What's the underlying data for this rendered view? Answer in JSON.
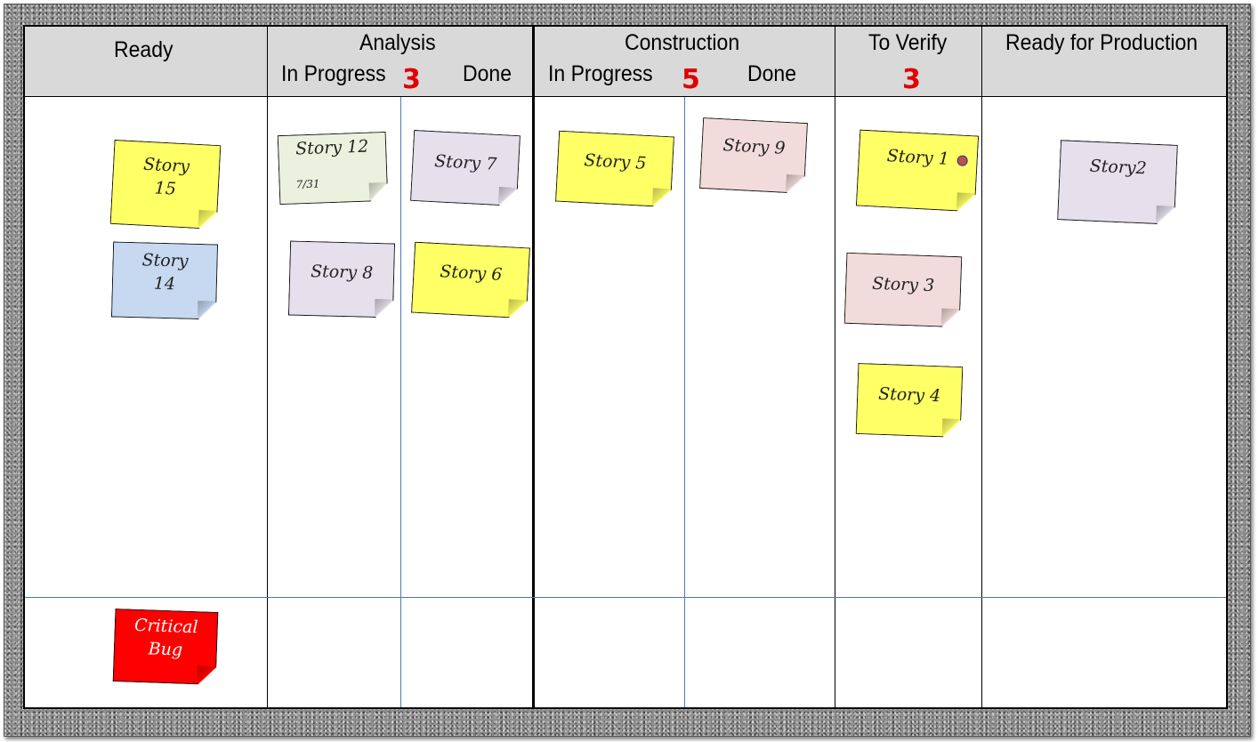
{
  "board": {
    "columns": {
      "ready": {
        "title": "Ready"
      },
      "analysis": {
        "title": "Analysis",
        "sub_in_progress": "In Progress",
        "sub_done": "Done",
        "wip_limit": "3"
      },
      "construction": {
        "title": "Construction",
        "sub_in_progress": "In Progress",
        "sub_done": "Done",
        "wip_limit": "5"
      },
      "to_verify": {
        "title": "To Verify",
        "wip_limit": "3"
      },
      "ready_for_production": {
        "title": "Ready for Production"
      }
    },
    "cards": [
      {
        "label": "Story 15",
        "line1": "Story",
        "line2": "15",
        "column": "Ready",
        "color": "#ffff66"
      },
      {
        "label": "Story 14",
        "line1": "Story",
        "line2": "14",
        "column": "Ready",
        "color": "#c6d9f0"
      },
      {
        "label": "Critical Bug",
        "line1": "Critical",
        "line2": "Bug",
        "column": "Ready (expedite lane)",
        "color": "#ff0000"
      },
      {
        "label": "Story 12",
        "date": "7/31",
        "column": "Analysis - In Progress",
        "color": "#ebf1de"
      },
      {
        "label": "Story 8",
        "column": "Analysis - In Progress",
        "color": "#e5e0ec"
      },
      {
        "label": "Story 7",
        "column": "Analysis - Done",
        "color": "#e5e0ec"
      },
      {
        "label": "Story 6",
        "column": "Analysis - Done",
        "color": "#ffff66"
      },
      {
        "label": "Story 5",
        "column": "Construction - In Progress",
        "color": "#ffff66"
      },
      {
        "label": "Story 9",
        "column": "Construction - Done",
        "color": "#f2dcdb"
      },
      {
        "label": "Story 1",
        "column": "To Verify",
        "color": "#ffff66",
        "marker_color": "#c0504d"
      },
      {
        "label": "Story 3",
        "column": "To Verify",
        "color": "#f2dcdb"
      },
      {
        "label": "Story 4",
        "column": "To Verify",
        "color": "#ffff66"
      },
      {
        "label": "Story2",
        "column": "Ready for Production",
        "color": "#e5e0ec"
      }
    ]
  }
}
